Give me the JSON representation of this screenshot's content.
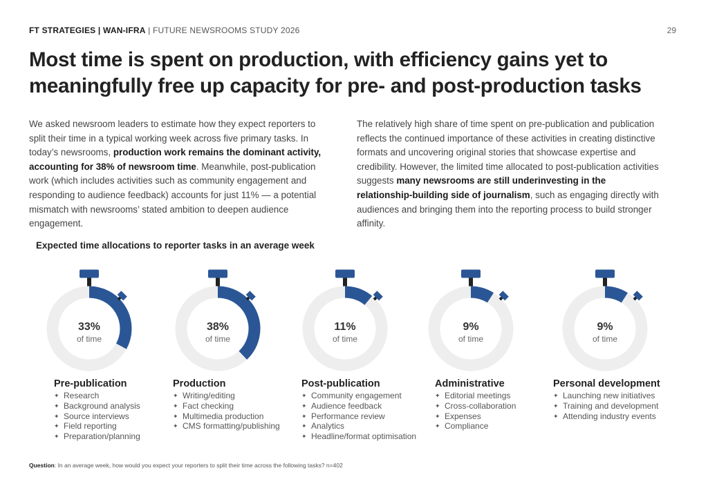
{
  "header": {
    "brand": "FT STRATEGIES | WAN-IFRA",
    "separator": " | ",
    "study": "FUTURE NEWSROOMS STUDY 2026"
  },
  "page_number": "29",
  "title": "Most time is spent on production, with efficiency gains yet to meaningfully free up capacity for pre- and post-production tasks",
  "body_left": {
    "p1": "We asked newsroom leaders to estimate how they expect reporters to split their time in a typical working week across five primary tasks. In today’s newsrooms, ",
    "b1": "production work remains the dominant activity, accounting for 38% of newsroom time",
    "p2": ". Meanwhile, post-publication work (which includes activities such as community engagement and responding to audience feedback) accounts for just 11% — a potential mismatch with newsrooms’ stated ambition to deepen audience engagement."
  },
  "body_right": {
    "p1": "The relatively high share of time spent on pre-publication and publication reflects the continued importance of these activities in creating distinctive formats and uncovering original stories that showcase expertise and credibility. However, the limited time allocated to post-publication activities suggests ",
    "b1": "many newsrooms are still underinvesting in the relationship-building side of journalism",
    "p2": ", such as  engaging directly with audiences and bringing them into the reporting process to build stronger affinity."
  },
  "chart_data": {
    "type": "pie",
    "title": "Expected time allocations to reporter tasks in an average week",
    "unit_label": "of time",
    "colors": {
      "fill": "#2b5696",
      "track": "#eeeeee",
      "stem": "#222222"
    },
    "categories": [
      {
        "name": "Pre-publication",
        "value": 33,
        "label": "33%",
        "tasks": [
          "Research",
          "Background analysis",
          "Source interviews",
          "Field reporting",
          "Preparation/planning"
        ]
      },
      {
        "name": "Production",
        "value": 38,
        "label": "38%",
        "tasks": [
          "Writing/editing",
          "Fact checking",
          "Multimedia production",
          "CMS formatting/publishing"
        ]
      },
      {
        "name": "Post-publication",
        "value": 11,
        "label": "11%",
        "tasks": [
          "Community engagement",
          "Audience feedback",
          "Performance review",
          "Analytics",
          "Headline/format optimisation"
        ]
      },
      {
        "name": "Administrative",
        "value": 9,
        "label": "9%",
        "tasks": [
          "Editorial meetings",
          "Cross-collaboration",
          "Expenses",
          "Compliance"
        ]
      },
      {
        "name": "Personal development",
        "value": 9,
        "label": "9%",
        "tasks": [
          "Launching new initiatives",
          "Training and development",
          "Attending industry events"
        ]
      }
    ]
  },
  "footnote": {
    "label": "Question",
    "text": ": In an average week, how would you expect your reporters to split their time across the following tasks? n=402"
  }
}
